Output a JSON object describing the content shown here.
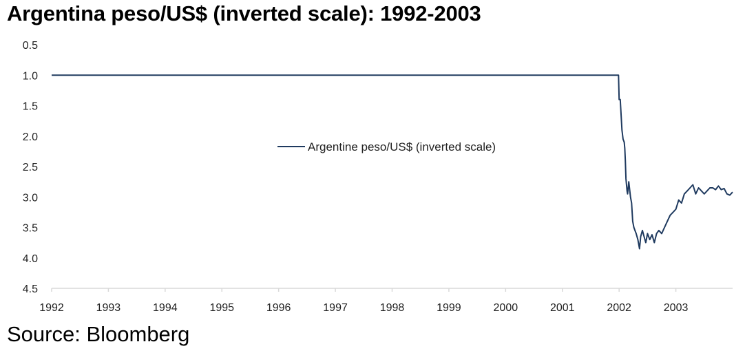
{
  "title": "Argentina peso/US$ (inverted scale): 1992-2003",
  "source": "Source: Bloomberg",
  "chart_data": {
    "type": "line",
    "inverted_y": true,
    "ylim": [
      0.5,
      4.5
    ],
    "y_ticks": [
      "0.5",
      "1.0",
      "1.5",
      "2.0",
      "2.5",
      "3.0",
      "3.5",
      "4.0",
      "4.5"
    ],
    "xlim": [
      1992.0,
      2004.0
    ],
    "x_ticks": [
      "1992",
      "1993",
      "1994",
      "1995",
      "1996",
      "1997",
      "1998",
      "1999",
      "2000",
      "2001",
      "2002",
      "2003"
    ],
    "grid": false,
    "legend": "center",
    "line_color": "#1f3a5f",
    "series": [
      {
        "name": "Argentine peso/US$ (inverted scale)",
        "x": [
          1992.0,
          1993.0,
          1994.0,
          1995.0,
          1996.0,
          1997.0,
          1998.0,
          1999.0,
          2000.0,
          2001.0,
          2001.99,
          2002.0,
          2002.02,
          2002.05,
          2002.07,
          2002.09,
          2002.1,
          2002.11,
          2002.12,
          2002.14,
          2002.15,
          2002.17,
          2002.2,
          2002.22,
          2002.24,
          2002.26,
          2002.28,
          2002.3,
          2002.33,
          2002.36,
          2002.38,
          2002.41,
          2002.44,
          2002.47,
          2002.5,
          2002.54,
          2002.58,
          2002.62,
          2002.66,
          2002.7,
          2002.75,
          2002.8,
          2002.85,
          2002.9,
          2002.95,
          2003.0,
          2003.05,
          2003.1,
          2003.15,
          2003.2,
          2003.25,
          2003.3,
          2003.35,
          2003.4,
          2003.45,
          2003.5,
          2003.55,
          2003.6,
          2003.65,
          2003.7,
          2003.75,
          2003.8,
          2003.85,
          2003.9,
          2003.95,
          2004.0
        ],
        "y": [
          1.0,
          1.0,
          1.0,
          1.0,
          1.0,
          1.0,
          1.0,
          1.0,
          1.0,
          1.0,
          1.0,
          1.4,
          1.4,
          1.9,
          2.05,
          2.1,
          2.2,
          2.4,
          2.7,
          2.9,
          2.95,
          2.75,
          3.0,
          3.1,
          3.4,
          3.5,
          3.55,
          3.6,
          3.7,
          3.85,
          3.65,
          3.55,
          3.65,
          3.75,
          3.6,
          3.7,
          3.62,
          3.75,
          3.6,
          3.55,
          3.6,
          3.5,
          3.4,
          3.3,
          3.25,
          3.2,
          3.05,
          3.1,
          2.95,
          2.9,
          2.85,
          2.8,
          2.95,
          2.85,
          2.9,
          2.95,
          2.9,
          2.85,
          2.85,
          2.88,
          2.82,
          2.88,
          2.86,
          2.95,
          2.97,
          2.92
        ]
      }
    ]
  }
}
